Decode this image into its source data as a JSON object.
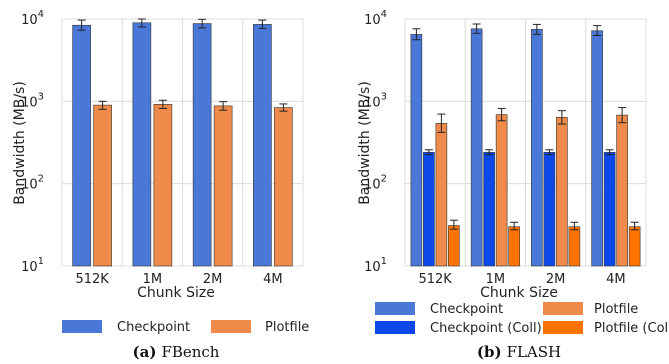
{
  "chart_data": [
    {
      "type": "bar",
      "scale": "log",
      "ylim": [
        10,
        10000
      ],
      "ylabel": "Bandwidth (MB/s)",
      "xlabel": "Chunk Size",
      "categories": [
        "512K",
        "1M",
        "2M",
        "4M"
      ],
      "ytick_labels": [
        {
          "base": "10",
          "exp": "1"
        },
        {
          "base": "10",
          "exp": "2"
        },
        {
          "base": "10",
          "exp": "3"
        },
        {
          "base": "10",
          "exp": "4"
        }
      ],
      "series": [
        {
          "name": "Checkpoint",
          "color": "#4a78d8",
          "values": [
            8400,
            9000,
            8800,
            8600
          ],
          "err_low": [
            7300,
            8000,
            7800,
            7700
          ],
          "err_high": [
            9700,
            10000,
            9900,
            9700
          ]
        },
        {
          "name": "Plotfile",
          "color": "#ef8a4a",
          "values": [
            900,
            920,
            880,
            840
          ],
          "err_low": [
            800,
            820,
            780,
            760
          ],
          "err_high": [
            1000,
            1030,
            990,
            930
          ]
        }
      ],
      "legend_position": "bottom",
      "grid": true,
      "caption": {
        "label": "(a)",
        "text": "FBench"
      }
    },
    {
      "type": "bar",
      "scale": "log",
      "ylim": [
        10,
        10000
      ],
      "ylabel": "Bandwidth (MB/s)",
      "xlabel": "Chunk Size",
      "categories": [
        "512K",
        "1M",
        "2M",
        "4M"
      ],
      "ytick_labels": [
        {
          "base": "10",
          "exp": "1"
        },
        {
          "base": "10",
          "exp": "2"
        },
        {
          "base": "10",
          "exp": "3"
        },
        {
          "base": "10",
          "exp": "4"
        }
      ],
      "series": [
        {
          "name": "Checkpoint",
          "color": "#4a78d8",
          "values": [
            6500,
            7600,
            7500,
            7200
          ],
          "err_low": [
            5600,
            6700,
            6500,
            6300
          ],
          "err_high": [
            7600,
            8700,
            8600,
            8300
          ]
        },
        {
          "name": "Checkpoint (Coll)",
          "color": "#0d49ea",
          "values": [
            240,
            240,
            240,
            240
          ],
          "err_low": [
            225,
            225,
            225,
            225
          ],
          "err_high": [
            258,
            258,
            258,
            258
          ]
        },
        {
          "name": "Plotfile",
          "color": "#ef8a4a",
          "values": [
            540,
            690,
            640,
            680
          ],
          "err_low": [
            420,
            580,
            530,
            550
          ],
          "err_high": [
            700,
            820,
            770,
            840
          ]
        },
        {
          "name": "Plotfile (Coll)",
          "color": "#ff7400",
          "values": [
            31,
            30,
            30,
            30
          ],
          "err_low": [
            28,
            27.5,
            27.5,
            27.5
          ],
          "err_high": [
            36,
            34,
            34,
            34
          ]
        }
      ],
      "legend_position": "bottom",
      "grid": true,
      "caption": {
        "label": "(b)",
        "text": "FLASH"
      }
    }
  ]
}
